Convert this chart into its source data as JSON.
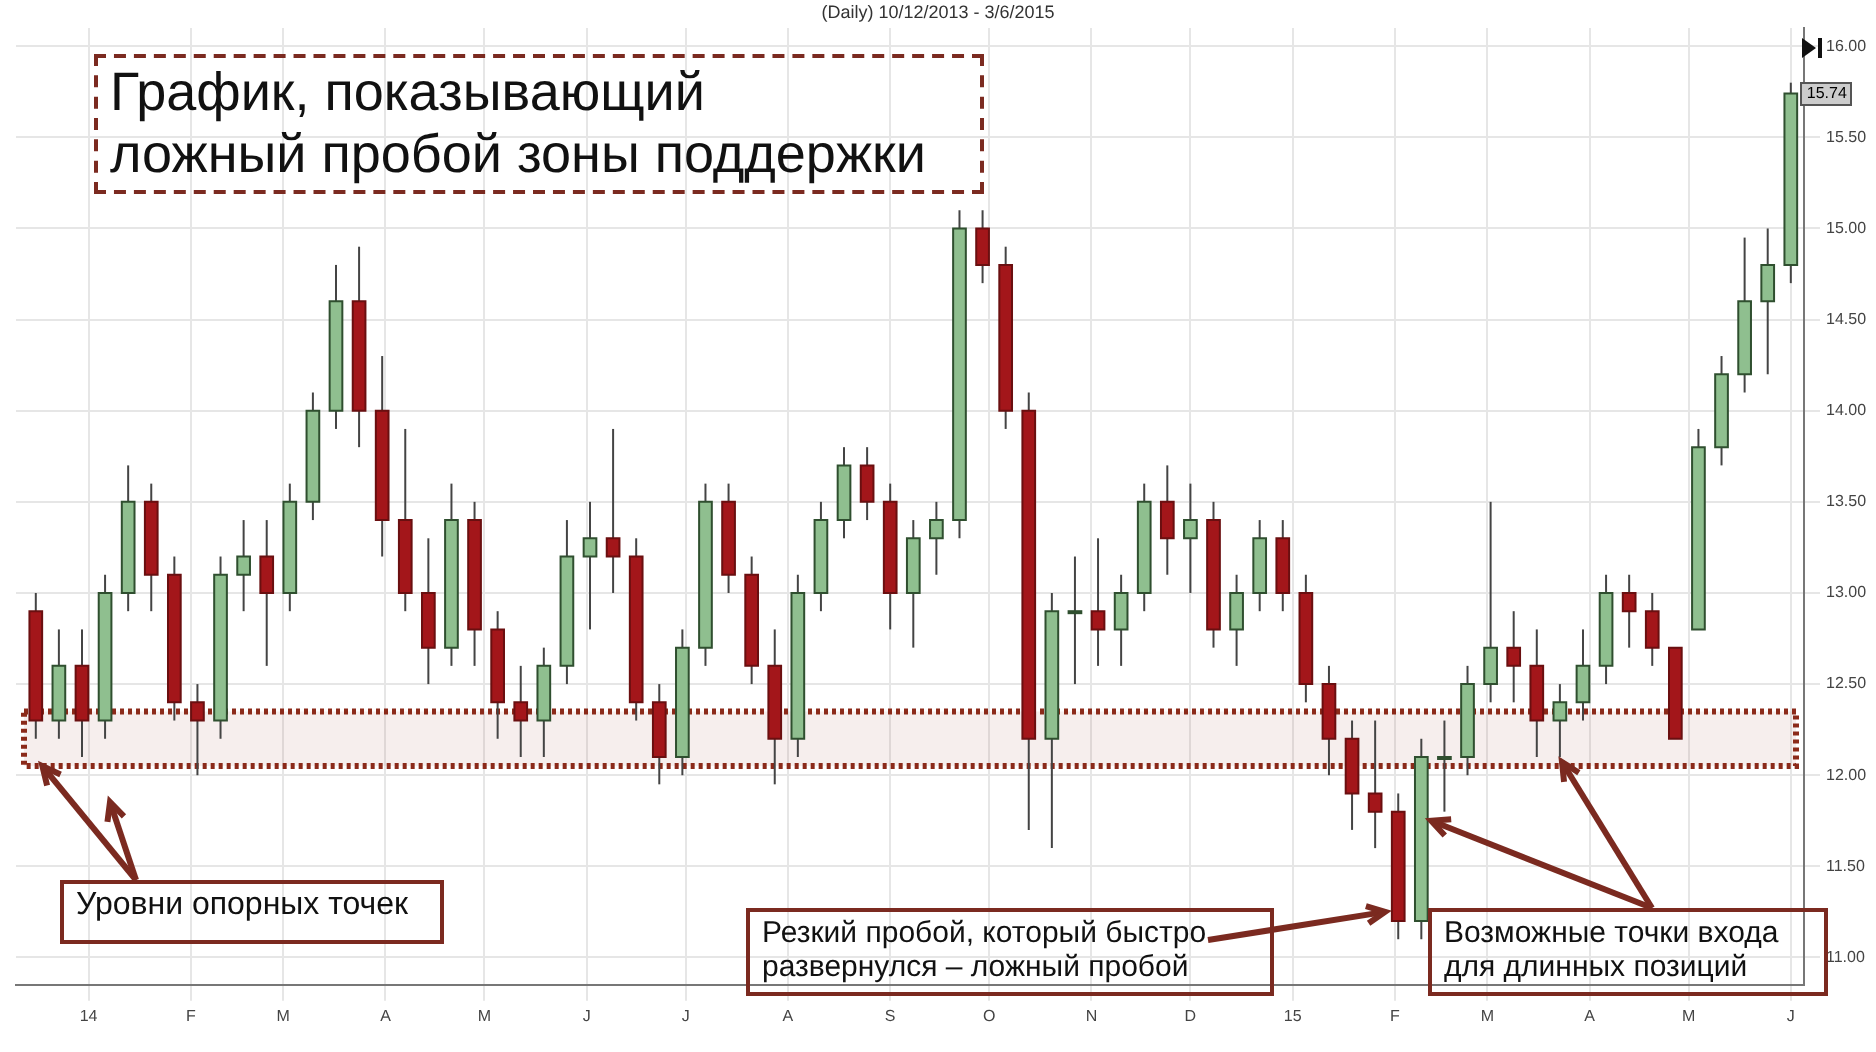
{
  "chart_data": {
    "type": "candlestick",
    "title": "(Daily) 10/12/2013 - 3/6/2015",
    "x": [
      "2013-12-16",
      "2013-12-23",
      "2013-12-30",
      "2014-01-06",
      "2014-01-13",
      "2014-01-20",
      "2014-01-27",
      "2014-02-03",
      "2014-02-10",
      "2014-02-17",
      "2014-02-24",
      "2014-03-03",
      "2014-03-10",
      "2014-03-17",
      "2014-03-24",
      "2014-03-31",
      "2014-04-07",
      "2014-04-14",
      "2014-04-21",
      "2014-04-28",
      "2014-05-05",
      "2014-05-12",
      "2014-05-19",
      "2014-05-26",
      "2014-06-02",
      "2014-06-09",
      "2014-06-16",
      "2014-06-23",
      "2014-06-30",
      "2014-07-07",
      "2014-07-14",
      "2014-07-21",
      "2014-07-28",
      "2014-08-04",
      "2014-08-11",
      "2014-08-18",
      "2014-08-25",
      "2014-09-01",
      "2014-09-08",
      "2014-09-15",
      "2014-09-22",
      "2014-09-29",
      "2014-10-06",
      "2014-10-13",
      "2014-10-20",
      "2014-10-27",
      "2014-11-03",
      "2014-11-10",
      "2014-11-17",
      "2014-11-24",
      "2014-12-01",
      "2014-12-08",
      "2014-12-15",
      "2014-12-22",
      "2014-12-29",
      "2015-01-05",
      "2015-01-12",
      "2015-01-19",
      "2015-01-26",
      "2015-02-02",
      "2015-02-09",
      "2015-02-16",
      "2015-02-23",
      "2015-03-02",
      "2015-03-09",
      "2015-03-16",
      "2015-03-23",
      "2015-03-30",
      "2015-04-06",
      "2015-04-13",
      "2015-04-20",
      "2015-04-27",
      "2015-05-04",
      "2015-05-11",
      "2015-05-18",
      "2015-05-25",
      "2015-06-01"
    ],
    "ohlc": [
      [
        12.9,
        13.0,
        12.2,
        12.3
      ],
      [
        12.3,
        12.8,
        12.2,
        12.6
      ],
      [
        12.6,
        12.8,
        12.1,
        12.3
      ],
      [
        12.3,
        13.1,
        12.2,
        13.0
      ],
      [
        13.0,
        13.7,
        12.9,
        13.5
      ],
      [
        13.5,
        13.6,
        12.9,
        13.1
      ],
      [
        13.1,
        13.2,
        12.3,
        12.4
      ],
      [
        12.4,
        12.5,
        12.0,
        12.3
      ],
      [
        12.3,
        13.2,
        12.2,
        13.1
      ],
      [
        13.1,
        13.4,
        12.9,
        13.2
      ],
      [
        13.2,
        13.4,
        12.6,
        13.0
      ],
      [
        13.0,
        13.6,
        12.9,
        13.5
      ],
      [
        13.5,
        14.1,
        13.4,
        14.0
      ],
      [
        14.0,
        14.8,
        13.9,
        14.6
      ],
      [
        14.6,
        14.9,
        13.8,
        14.0
      ],
      [
        14.0,
        14.3,
        13.2,
        13.4
      ],
      [
        13.4,
        13.9,
        12.9,
        13.0
      ],
      [
        13.0,
        13.3,
        12.5,
        12.7
      ],
      [
        12.7,
        13.6,
        12.6,
        13.4
      ],
      [
        13.4,
        13.5,
        12.6,
        12.8
      ],
      [
        12.8,
        12.9,
        12.2,
        12.4
      ],
      [
        12.4,
        12.6,
        12.1,
        12.3
      ],
      [
        12.3,
        12.7,
        12.1,
        12.6
      ],
      [
        12.6,
        13.4,
        12.5,
        13.2
      ],
      [
        13.2,
        13.5,
        12.8,
        13.3
      ],
      [
        13.3,
        13.9,
        13.0,
        13.2
      ],
      [
        13.2,
        13.3,
        12.3,
        12.4
      ],
      [
        12.4,
        12.5,
        11.95,
        12.1
      ],
      [
        12.1,
        12.8,
        12.0,
        12.7
      ],
      [
        12.7,
        13.6,
        12.6,
        13.5
      ],
      [
        13.5,
        13.6,
        13.0,
        13.1
      ],
      [
        13.1,
        13.2,
        12.5,
        12.6
      ],
      [
        12.6,
        12.8,
        11.95,
        12.2
      ],
      [
        12.2,
        13.1,
        12.1,
        13.0
      ],
      [
        13.0,
        13.5,
        12.9,
        13.4
      ],
      [
        13.4,
        13.8,
        13.3,
        13.7
      ],
      [
        13.7,
        13.8,
        13.4,
        13.5
      ],
      [
        13.5,
        13.6,
        12.8,
        13.0
      ],
      [
        13.0,
        13.4,
        12.7,
        13.3
      ],
      [
        13.3,
        13.5,
        13.1,
        13.4
      ],
      [
        13.4,
        15.1,
        13.3,
        15.0
      ],
      [
        15.0,
        15.1,
        14.7,
        14.8
      ],
      [
        14.8,
        14.9,
        13.9,
        14.0
      ],
      [
        14.0,
        14.1,
        11.7,
        12.2
      ],
      [
        12.2,
        13.0,
        11.6,
        12.9
      ],
      [
        12.9,
        13.2,
        12.5,
        12.9
      ],
      [
        12.9,
        13.3,
        12.6,
        12.8
      ],
      [
        12.8,
        13.1,
        12.6,
        13.0
      ],
      [
        13.0,
        13.6,
        12.9,
        13.5
      ],
      [
        13.5,
        13.7,
        13.1,
        13.3
      ],
      [
        13.3,
        13.6,
        13.0,
        13.4
      ],
      [
        13.4,
        13.5,
        12.7,
        12.8
      ],
      [
        12.8,
        13.1,
        12.6,
        13.0
      ],
      [
        13.0,
        13.4,
        12.9,
        13.3
      ],
      [
        13.3,
        13.4,
        12.9,
        13.0
      ],
      [
        13.0,
        13.1,
        12.4,
        12.5
      ],
      [
        12.5,
        12.6,
        12.0,
        12.2
      ],
      [
        12.2,
        12.3,
        11.7,
        11.9
      ],
      [
        11.9,
        12.3,
        11.6,
        11.8
      ],
      [
        11.8,
        11.9,
        11.1,
        11.2
      ],
      [
        11.2,
        12.2,
        11.1,
        12.1
      ],
      [
        12.1,
        12.3,
        11.8,
        12.1
      ],
      [
        12.1,
        12.6,
        12.0,
        12.5
      ],
      [
        12.5,
        13.5,
        12.4,
        12.7
      ],
      [
        12.7,
        12.9,
        12.4,
        12.6
      ],
      [
        12.6,
        12.8,
        12.1,
        12.3
      ],
      [
        12.3,
        12.5,
        12.1,
        12.4
      ],
      [
        12.4,
        12.8,
        12.3,
        12.6
      ],
      [
        12.6,
        13.1,
        12.5,
        13.0
      ],
      [
        13.0,
        13.1,
        12.7,
        12.9
      ],
      [
        12.9,
        13.0,
        12.6,
        12.7
      ],
      [
        12.7,
        12.7,
        12.2,
        12.2
      ],
      [
        12.8,
        13.9,
        12.8,
        13.8
      ],
      [
        13.8,
        14.3,
        13.7,
        14.2
      ],
      [
        14.2,
        14.95,
        14.1,
        14.6
      ],
      [
        14.6,
        15.0,
        14.2,
        14.8
      ],
      [
        14.8,
        15.8,
        14.7,
        15.74
      ]
    ],
    "xlim": [
      "2013-12-10",
      "2015-06-05"
    ],
    "xticks": [
      {
        "value": "2014-01-01",
        "label": "14"
      },
      {
        "value": "2014-02-01",
        "label": "F"
      },
      {
        "value": "2014-03-01",
        "label": "M"
      },
      {
        "value": "2014-04-01",
        "label": "A"
      },
      {
        "value": "2014-05-01",
        "label": "M"
      },
      {
        "value": "2014-06-01",
        "label": "J"
      },
      {
        "value": "2014-07-01",
        "label": "J"
      },
      {
        "value": "2014-08-01",
        "label": "A"
      },
      {
        "value": "2014-09-01",
        "label": "S"
      },
      {
        "value": "2014-10-01",
        "label": "O"
      },
      {
        "value": "2014-11-01",
        "label": "N"
      },
      {
        "value": "2014-12-01",
        "label": "D"
      },
      {
        "value": "2015-01-01",
        "label": "15"
      },
      {
        "value": "2015-02-01",
        "label": "F"
      },
      {
        "value": "2015-03-01",
        "label": "M"
      },
      {
        "value": "2015-04-01",
        "label": "A"
      },
      {
        "value": "2015-05-01",
        "label": "M"
      },
      {
        "value": "2015-06-01",
        "label": "J"
      }
    ],
    "ylim": [
      10.85,
      16.1
    ],
    "yticks": [
      {
        "value": 11,
        "label": "11.00"
      },
      {
        "value": 11.5,
        "label": "11.50"
      },
      {
        "value": 12,
        "label": "12.00"
      },
      {
        "value": 12.5,
        "label": "12.50"
      },
      {
        "value": 13,
        "label": "13.00"
      },
      {
        "value": 13.5,
        "label": "13.50"
      },
      {
        "value": 14,
        "label": "14.00"
      },
      {
        "value": 14.5,
        "label": "14.50"
      },
      {
        "value": 15,
        "label": "15.00"
      },
      {
        "value": 15.5,
        "label": "15.50"
      },
      {
        "value": 16,
        "label": "16.00"
      }
    ],
    "grid": true,
    "bands": [
      {
        "axis": "y",
        "from": 12.05,
        "to": 12.35,
        "color": "#8b2a1a"
      }
    ],
    "annotations": [
      "График, показывающий\nложный пробой зоны поддержки",
      {
        "text": "Уровни опорных точек",
        "x": "2013-12-18",
        "y": 12.05
      },
      {
        "text": "Резкий пробой, который быстро\nразвернулся – ложный пробой",
        "x": "2015-01-29",
        "y": 11.25
      },
      {
        "text": "Возможные точки входа\nдля длинных позиций",
        "x": "2015-02-12",
        "y": 11.75
      },
      {
        "text": "15.74",
        "x": "2015-06-01",
        "y": 15.74
      }
    ]
  }
}
